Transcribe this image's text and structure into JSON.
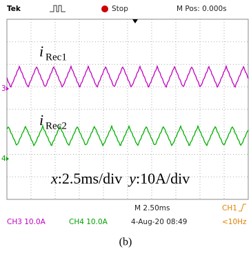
{
  "header": {
    "brand": "Tek",
    "status": "Stop",
    "position": "M Pos: 0.000s"
  },
  "traces": [
    {
      "label": "i",
      "subscript": "Rec1",
      "marker": "3"
    },
    {
      "label": "i",
      "subscript": "Rec2",
      "marker": "4"
    }
  ],
  "annotation": {
    "x_var": "x",
    "x_scale": ":2.5ms/div",
    "y_var": "y",
    "y_scale": ":10A/div"
  },
  "footer": {
    "timebase": "M 2.50ms",
    "trigger_source": "CH1",
    "ch3": "CH3 10.0A",
    "ch4": "CH4 10.0A",
    "datetime": "4-Aug-20 08:49",
    "trigger_freq": "<10Hz"
  },
  "caption": "(b)"
}
